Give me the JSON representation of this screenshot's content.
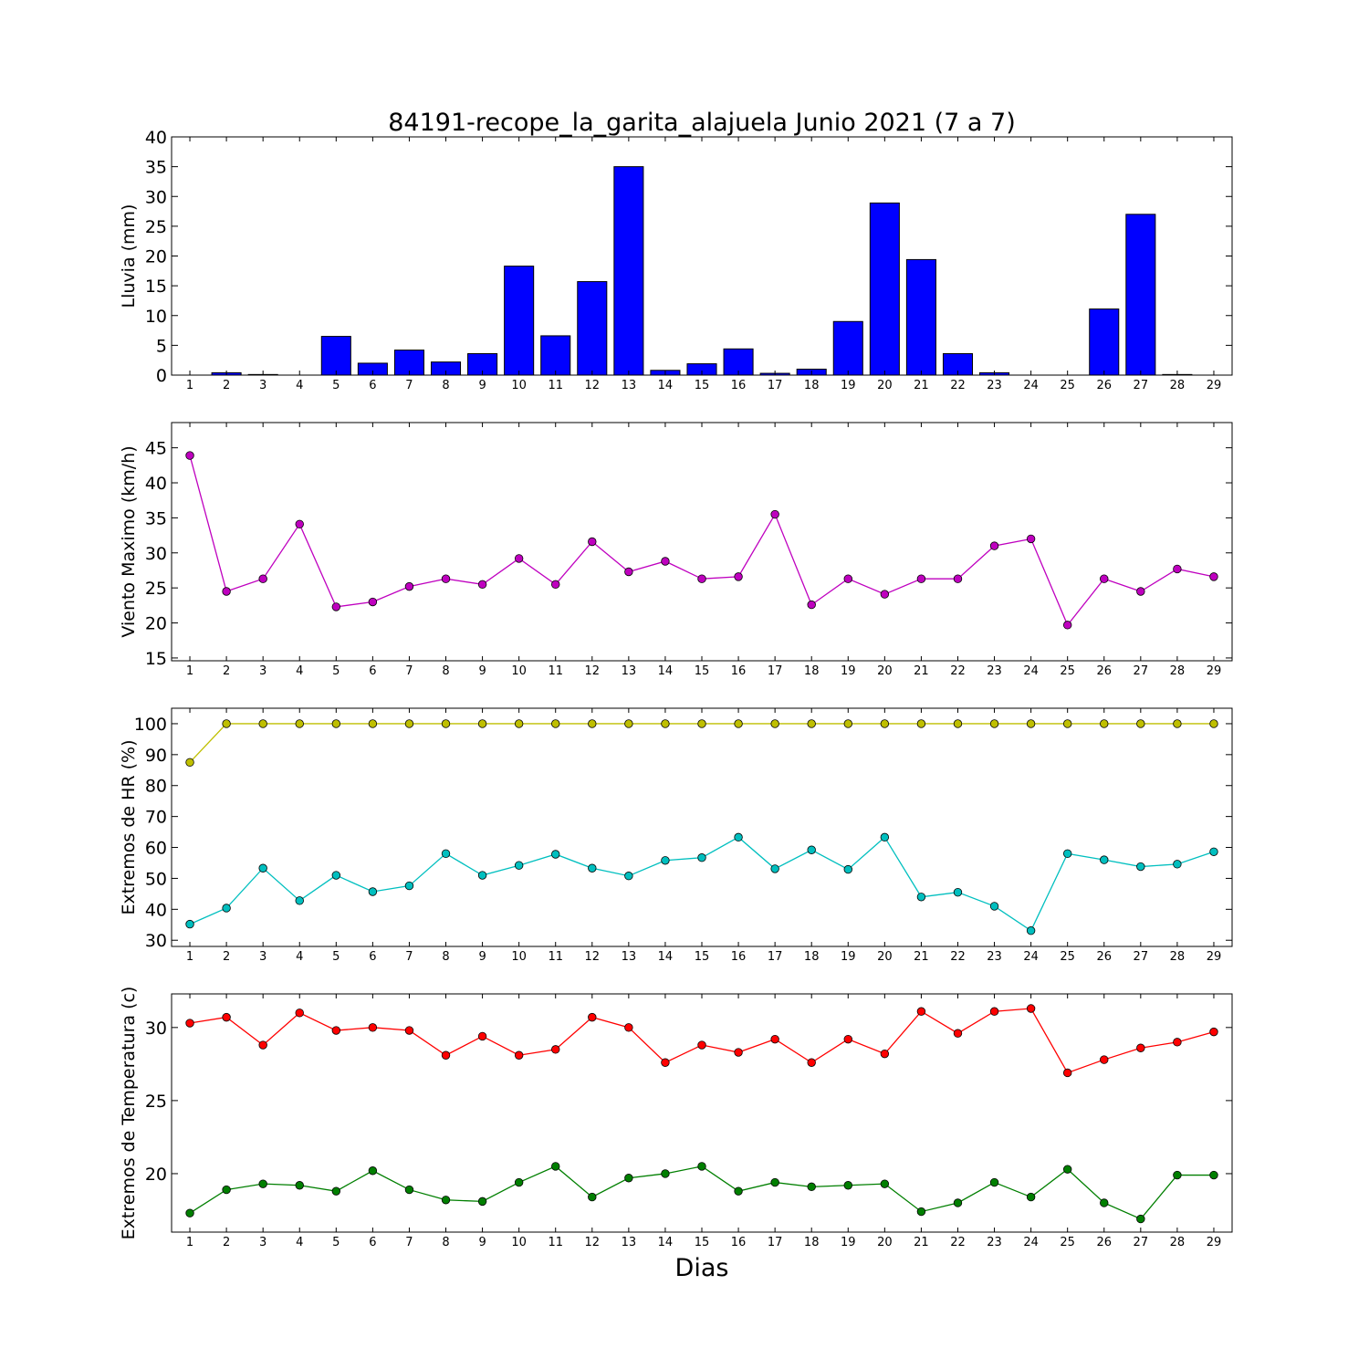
{
  "title": "84191-recope_la_garita_alajuela Junio 2021  (7 a 7)",
  "xlabel": "Dias",
  "colors": {
    "bar": "#0000ff",
    "viento": "#bf00bf",
    "hr_max": "#bfbf00",
    "hr_min": "#00bfbf",
    "t_max": "#ff0000",
    "t_min": "#007f00"
  },
  "chart_data": [
    {
      "type": "bar",
      "ylabel": "Lluvia (mm)",
      "ylim": [
        0,
        40
      ],
      "yticks": [
        0,
        5,
        10,
        15,
        20,
        25,
        30,
        35,
        40
      ],
      "categories": [
        "1",
        "2",
        "3",
        "4",
        "5",
        "6",
        "7",
        "8",
        "9",
        "10",
        "11",
        "12",
        "13",
        "14",
        "15",
        "16",
        "17",
        "18",
        "19",
        "20",
        "21",
        "22",
        "23",
        "24",
        "25",
        "26",
        "27",
        "28",
        "29"
      ],
      "values": [
        0,
        0.4,
        0.1,
        0,
        6.5,
        2.0,
        4.2,
        2.2,
        3.6,
        18.3,
        6.6,
        15.7,
        35.0,
        0.8,
        1.9,
        4.4,
        0.3,
        1.0,
        9.0,
        28.9,
        19.4,
        3.6,
        0.4,
        0,
        0,
        11.1,
        27.0,
        0.1,
        0
      ],
      "grid": false
    },
    {
      "type": "line",
      "ylabel": "Viento Maximo (km/h)",
      "ylim": [
        14.6,
        48.6
      ],
      "yticks": [
        15,
        20,
        25,
        30,
        35,
        40,
        45
      ],
      "x": [
        1,
        2,
        3,
        4,
        5,
        6,
        7,
        8,
        9,
        10,
        11,
        12,
        13,
        14,
        15,
        16,
        17,
        18,
        19,
        20,
        21,
        22,
        23,
        24,
        25,
        26,
        27,
        28,
        29
      ],
      "series": [
        {
          "color_key": "viento",
          "values": [
            43.9,
            24.5,
            26.3,
            34.1,
            22.3,
            23.0,
            25.2,
            26.3,
            25.5,
            29.2,
            25.5,
            31.6,
            27.3,
            28.8,
            26.3,
            26.6,
            35.5,
            22.6,
            26.3,
            24.1,
            26.3,
            26.3,
            31.0,
            32.0,
            19.7,
            26.3,
            24.5,
            27.7,
            26.6
          ]
        }
      ],
      "grid": false
    },
    {
      "type": "line",
      "ylabel": "Extremos de HR (%)",
      "ylim": [
        28,
        105
      ],
      "yticks": [
        30,
        40,
        50,
        60,
        70,
        80,
        90,
        100
      ],
      "x": [
        1,
        2,
        3,
        4,
        5,
        6,
        7,
        8,
        9,
        10,
        11,
        12,
        13,
        14,
        15,
        16,
        17,
        18,
        19,
        20,
        21,
        22,
        23,
        24,
        25,
        26,
        27,
        28,
        29
      ],
      "series": [
        {
          "color_key": "hr_max",
          "values": [
            87.5,
            100,
            100,
            100,
            100,
            100,
            100,
            100,
            100,
            100,
            100,
            100,
            100,
            100,
            100,
            100,
            100,
            100,
            100,
            100,
            100,
            100,
            100,
            100,
            100,
            100,
            100,
            100,
            100
          ]
        },
        {
          "color_key": "hr_min",
          "values": [
            35.2,
            40.4,
            53.3,
            42.8,
            51.0,
            45.7,
            47.6,
            58.0,
            51.0,
            54.2,
            57.8,
            53.3,
            50.8,
            55.8,
            56.7,
            63.3,
            53.1,
            59.2,
            52.9,
            63.3,
            44.0,
            45.5,
            41.0,
            33.1,
            58.0,
            56.0,
            53.8,
            54.6,
            58.6
          ]
        }
      ],
      "grid": false
    },
    {
      "type": "line",
      "ylabel": "Extremos de Temperatura (c)",
      "ylim": [
        16.0,
        32.3
      ],
      "yticks": [
        20,
        25,
        30
      ],
      "x": [
        1,
        2,
        3,
        4,
        5,
        6,
        7,
        8,
        9,
        10,
        11,
        12,
        13,
        14,
        15,
        16,
        17,
        18,
        19,
        20,
        21,
        22,
        23,
        24,
        25,
        26,
        27,
        28,
        29
      ],
      "series": [
        {
          "color_key": "t_max",
          "values": [
            30.3,
            30.7,
            28.8,
            31.0,
            29.8,
            30.0,
            29.8,
            28.1,
            29.4,
            28.1,
            28.5,
            30.7,
            30.0,
            27.6,
            28.8,
            28.3,
            29.2,
            27.6,
            29.2,
            28.2,
            31.1,
            29.6,
            31.1,
            31.3,
            26.9,
            27.8,
            28.6,
            29.0,
            29.7
          ]
        },
        {
          "color_key": "t_min",
          "values": [
            17.3,
            18.9,
            19.3,
            19.2,
            18.8,
            20.2,
            18.9,
            18.2,
            18.1,
            19.4,
            20.5,
            18.4,
            19.7,
            20.0,
            20.5,
            18.8,
            19.4,
            19.1,
            19.2,
            19.3,
            17.4,
            18.0,
            19.4,
            18.4,
            20.3,
            18.0,
            16.9,
            19.9,
            19.9
          ]
        }
      ],
      "grid": false
    }
  ]
}
